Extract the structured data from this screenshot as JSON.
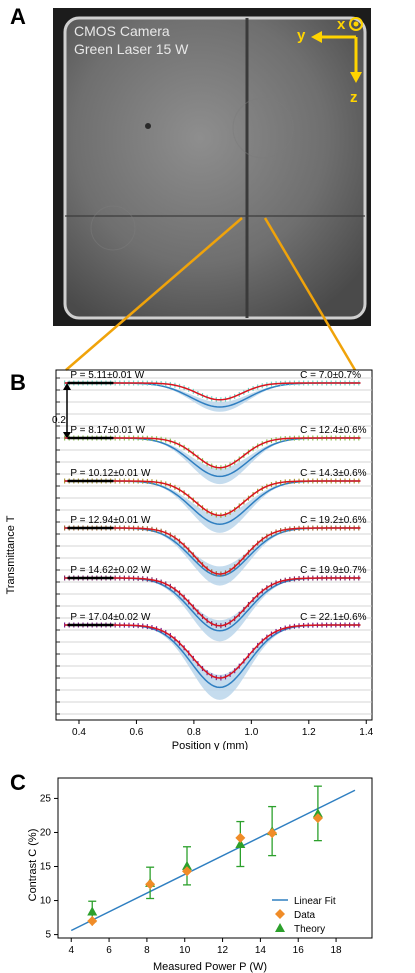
{
  "figure": {
    "panel_a": {
      "label": "A",
      "camera_text": [
        "CMOS Camera",
        "Green Laser 15 W"
      ],
      "axes": {
        "x": "x",
        "y": "y",
        "z": "z"
      }
    },
    "panel_b": {
      "label": "B",
      "offset_label": "0.2"
    },
    "panel_c": {
      "label": "C"
    }
  },
  "chart_data": [
    {
      "type": "line",
      "xlabel": "Position y (mm)",
      "ylabel": "Transmittance T",
      "xlim": [
        0.32,
        1.42
      ],
      "x_ticks": [
        "0.4",
        "0.6",
        "0.8",
        "1.0",
        "1.2",
        "1.4"
      ],
      "offset_per_trace": 0.2,
      "series": [
        {
          "power": "P = 5.11±0.01 W",
          "contrast": "C = 7.0±0.7%",
          "depth_data": 0.07,
          "depth_theory": 0.1,
          "color": "#6fd6c6"
        },
        {
          "power": "P = 8.17±0.01 W",
          "contrast": "C = 12.4±0.6%",
          "depth_data": 0.124,
          "depth_theory": 0.16,
          "color": "#8cbf56"
        },
        {
          "power": "P = 10.12±0.01 W",
          "contrast": "C = 14.3±0.6%",
          "depth_data": 0.143,
          "depth_theory": 0.18,
          "color": "#a99a38"
        },
        {
          "power": "P = 12.94±0.01 W",
          "contrast": "C = 19.2±0.6%",
          "depth_data": 0.192,
          "depth_theory": 0.2,
          "color": "#9b6a3a"
        },
        {
          "power": "P = 14.62±0.02 W",
          "contrast": "C = 19.9±0.7%",
          "depth_data": 0.199,
          "depth_theory": 0.22,
          "color": "#7a2a6a"
        },
        {
          "power": "P = 17.04±0.02 W",
          "contrast": "C = 22.1±0.6%",
          "depth_data": 0.221,
          "depth_theory": 0.26,
          "color": "#7a1e8a"
        }
      ],
      "fit_color": "#d9141e",
      "theory_color": "#2f7fc1",
      "band_color": "#b7d3ea"
    },
    {
      "type": "scatter",
      "xlabel": "Measured Power P (W)",
      "ylabel": "Contrast C (%)",
      "xlim": [
        3.3,
        19.9
      ],
      "ylim": [
        4.5,
        28
      ],
      "x_ticks": [
        4,
        6,
        8,
        10,
        12,
        14,
        16,
        18
      ],
      "y_ticks": [
        5,
        10,
        15,
        20,
        25
      ],
      "linear_fit": {
        "x": [
          4,
          19
        ],
        "y": [
          5.6,
          26.2
        ]
      },
      "data": {
        "x": [
          5.11,
          8.17,
          10.12,
          12.94,
          14.62,
          17.04
        ],
        "y": [
          7.0,
          12.4,
          14.3,
          19.2,
          19.9,
          22.1
        ],
        "yerr": [
          0.7,
          0.6,
          0.6,
          0.6,
          0.7,
          0.6
        ]
      },
      "theory": {
        "x": [
          5.11,
          8.17,
          10.12,
          12.94,
          14.62,
          17.04
        ],
        "y": [
          8.4,
          12.6,
          15.1,
          18.3,
          20.2,
          22.8
        ],
        "yerr": [
          1.5,
          2.3,
          2.8,
          3.3,
          3.6,
          4.0
        ]
      },
      "legend": [
        "Linear Fit",
        "Data",
        "Theory"
      ],
      "legend_position": "bottom-right",
      "colors": {
        "fit": "#2f7fc1",
        "data": "#f08c28",
        "theory": "#2ca02c"
      }
    }
  ]
}
